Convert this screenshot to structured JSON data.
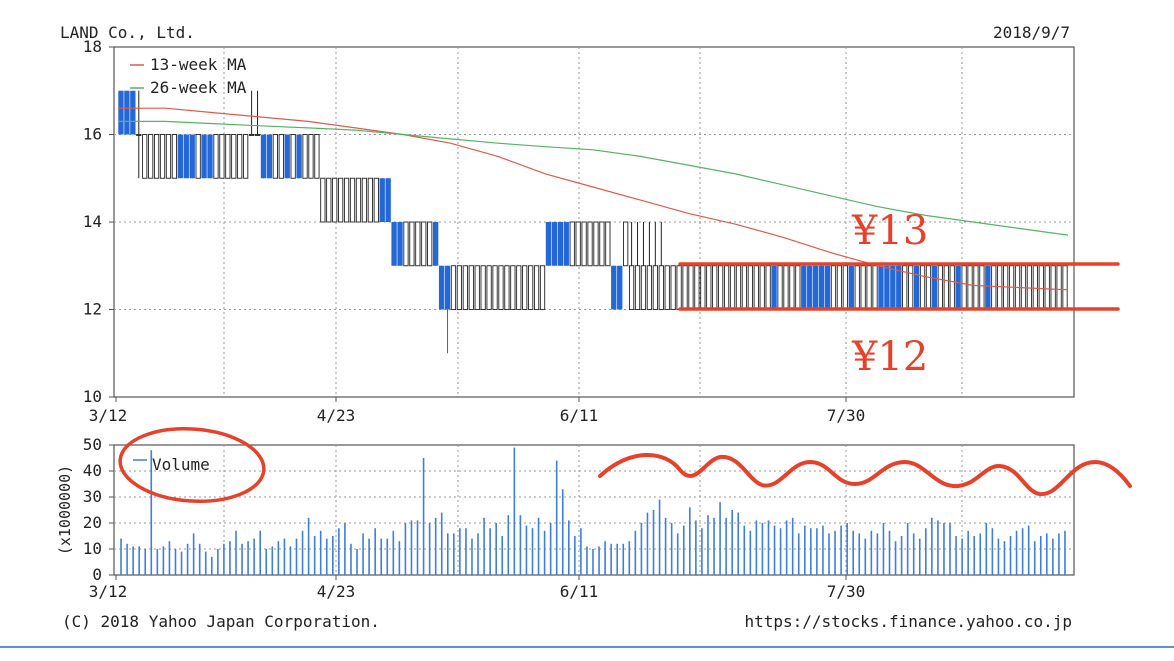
{
  "header": {
    "company": "LAND Co., Ltd.",
    "date": "2018/9/7"
  },
  "footer": {
    "copyright": "(C) 2018 Yahoo Japan Corporation.",
    "url": "https://stocks.finance.yahoo.co.jp"
  },
  "annotations": {
    "upper_label": "¥13",
    "lower_label": "¥12",
    "color": "#e8412a"
  },
  "colors": {
    "up_candle": "#2468d8",
    "down_candle": "#222222",
    "ma13": "#e05a4a",
    "ma26": "#56b464",
    "volume": "#3d7ede",
    "grid": "#999999"
  },
  "chart_data": [
    {
      "type": "candlestick",
      "ylim": [
        10,
        18
      ],
      "y_ticks": [
        "10",
        "12",
        "14",
        "16",
        "18"
      ],
      "x_tick_labels": [
        "3/12",
        "4/23",
        "6/11",
        "7/30"
      ],
      "series": [
        {
          "name": "13-week MA",
          "values": [
            16.6,
            16.6,
            16.5,
            16.4,
            16.3,
            16.15,
            16.0,
            15.8,
            15.5,
            15.1,
            14.8,
            14.5,
            14.2,
            13.95,
            13.65,
            13.3,
            13.0,
            12.75,
            12.55,
            12.5,
            12.45
          ]
        },
        {
          "name": "26-week MA",
          "values": [
            16.3,
            16.3,
            16.25,
            16.2,
            16.15,
            16.1,
            16.0,
            15.9,
            15.8,
            15.72,
            15.65,
            15.5,
            15.3,
            15.1,
            14.85,
            14.6,
            14.35,
            14.15,
            14.0,
            13.85,
            13.7
          ]
        }
      ],
      "candles": [
        {
          "o": 16,
          "h": 17,
          "l": 16,
          "c": 17
        },
        {
          "o": 16,
          "h": 17,
          "l": 16,
          "c": 17
        },
        {
          "o": 16,
          "h": 17,
          "l": 16,
          "c": 17
        },
        {
          "o": 16,
          "h": 17,
          "l": 15,
          "c": 16
        },
        {
          "o": 16,
          "h": 16,
          "l": 15,
          "c": 15
        },
        {
          "o": 16,
          "h": 16,
          "l": 15,
          "c": 15
        },
        {
          "o": 16,
          "h": 16,
          "l": 15,
          "c": 15
        },
        {
          "o": 16,
          "h": 16,
          "l": 15,
          "c": 15
        },
        {
          "o": 16,
          "h": 16,
          "l": 15,
          "c": 15
        },
        {
          "o": 16,
          "h": 16,
          "l": 15,
          "c": 15
        },
        {
          "o": 15,
          "h": 16,
          "l": 15,
          "c": 16
        },
        {
          "o": 15,
          "h": 16,
          "l": 15,
          "c": 16
        },
        {
          "o": 15,
          "h": 16,
          "l": 15,
          "c": 16
        },
        {
          "o": 16,
          "h": 16,
          "l": 15,
          "c": 15
        },
        {
          "o": 15,
          "h": 16,
          "l": 15,
          "c": 16
        },
        {
          "o": 15,
          "h": 16,
          "l": 15,
          "c": 16
        },
        {
          "o": 16,
          "h": 16,
          "l": 15,
          "c": 15
        },
        {
          "o": 16,
          "h": 16,
          "l": 15,
          "c": 15
        },
        {
          "o": 16,
          "h": 16,
          "l": 15,
          "c": 15
        },
        {
          "o": 16,
          "h": 16,
          "l": 15,
          "c": 15
        },
        {
          "o": 16,
          "h": 16,
          "l": 15,
          "c": 15
        },
        {
          "o": 16,
          "h": 16,
          "l": 15,
          "c": 15
        },
        {
          "o": 16,
          "h": 17,
          "l": 16,
          "c": 16
        },
        {
          "o": 16,
          "h": 17,
          "l": 16,
          "c": 16
        },
        {
          "o": 15,
          "h": 16,
          "l": 15,
          "c": 16
        },
        {
          "o": 15,
          "h": 16,
          "l": 15,
          "c": 16
        },
        {
          "o": 16,
          "h": 16,
          "l": 15,
          "c": 15
        },
        {
          "o": 16,
          "h": 16,
          "l": 15,
          "c": 15
        },
        {
          "o": 15,
          "h": 16,
          "l": 15,
          "c": 16
        },
        {
          "o": 16,
          "h": 16,
          "l": 15,
          "c": 15
        },
        {
          "o": 15,
          "h": 16,
          "l": 15,
          "c": 16
        },
        {
          "o": 16,
          "h": 16,
          "l": 15,
          "c": 15
        },
        {
          "o": 16,
          "h": 16,
          "l": 15,
          "c": 15
        },
        {
          "o": 16,
          "h": 16,
          "l": 15,
          "c": 15
        },
        {
          "o": 15,
          "h": 15,
          "l": 14,
          "c": 14
        },
        {
          "o": 15,
          "h": 15,
          "l": 14,
          "c": 14
        },
        {
          "o": 15,
          "h": 15,
          "l": 14,
          "c": 14
        },
        {
          "o": 15,
          "h": 15,
          "l": 14,
          "c": 14
        },
        {
          "o": 15,
          "h": 15,
          "l": 14,
          "c": 14
        },
        {
          "o": 15,
          "h": 15,
          "l": 14,
          "c": 14
        },
        {
          "o": 15,
          "h": 15,
          "l": 14,
          "c": 14
        },
        {
          "o": 15,
          "h": 15,
          "l": 14,
          "c": 14
        },
        {
          "o": 15,
          "h": 15,
          "l": 14,
          "c": 14
        },
        {
          "o": 15,
          "h": 15,
          "l": 14,
          "c": 14
        },
        {
          "o": 14,
          "h": 15,
          "l": 14,
          "c": 15
        },
        {
          "o": 14,
          "h": 15,
          "l": 14,
          "c": 15
        },
        {
          "o": 13,
          "h": 14,
          "l": 13,
          "c": 14
        },
        {
          "o": 13,
          "h": 14,
          "l": 13,
          "c": 14
        },
        {
          "o": 14,
          "h": 14,
          "l": 13,
          "c": 13
        },
        {
          "o": 14,
          "h": 14,
          "l": 13,
          "c": 13
        },
        {
          "o": 14,
          "h": 14,
          "l": 13,
          "c": 13
        },
        {
          "o": 14,
          "h": 14,
          "l": 13,
          "c": 13
        },
        {
          "o": 14,
          "h": 14,
          "l": 13,
          "c": 13
        },
        {
          "o": 13,
          "h": 14,
          "l": 13,
          "c": 14
        },
        {
          "o": 12,
          "h": 13,
          "l": 12,
          "c": 13
        },
        {
          "o": 12,
          "h": 13,
          "l": 11,
          "c": 13
        },
        {
          "o": 13,
          "h": 13,
          "l": 12,
          "c": 12
        },
        {
          "o": 13,
          "h": 13,
          "l": 12,
          "c": 12
        },
        {
          "o": 13,
          "h": 13,
          "l": 12,
          "c": 12
        },
        {
          "o": 13,
          "h": 13,
          "l": 12,
          "c": 12
        },
        {
          "o": 13,
          "h": 13,
          "l": 12,
          "c": 12
        },
        {
          "o": 13,
          "h": 13,
          "l": 12,
          "c": 12
        },
        {
          "o": 13,
          "h": 13,
          "l": 12,
          "c": 12
        },
        {
          "o": 13,
          "h": 13,
          "l": 12,
          "c": 12
        },
        {
          "o": 13,
          "h": 13,
          "l": 12,
          "c": 12
        },
        {
          "o": 13,
          "h": 13,
          "l": 12,
          "c": 12
        },
        {
          "o": 13,
          "h": 13,
          "l": 12,
          "c": 12
        },
        {
          "o": 13,
          "h": 13,
          "l": 12,
          "c": 12
        },
        {
          "o": 13,
          "h": 13,
          "l": 12,
          "c": 12
        },
        {
          "o": 13,
          "h": 13,
          "l": 12,
          "c": 12
        },
        {
          "o": 13,
          "h": 13,
          "l": 12,
          "c": 12
        },
        {
          "o": 13,
          "h": 13,
          "l": 12,
          "c": 12
        },
        {
          "o": 13,
          "h": 14,
          "l": 13,
          "c": 14
        },
        {
          "o": 13,
          "h": 14,
          "l": 13,
          "c": 14
        },
        {
          "o": 13,
          "h": 14,
          "l": 13,
          "c": 14
        },
        {
          "o": 13,
          "h": 14,
          "l": 13,
          "c": 14
        },
        {
          "o": 14,
          "h": 14,
          "l": 13,
          "c": 13
        },
        {
          "o": 14,
          "h": 14,
          "l": 13,
          "c": 13
        },
        {
          "o": 14,
          "h": 14,
          "l": 13,
          "c": 13
        },
        {
          "o": 14,
          "h": 14,
          "l": 13,
          "c": 13
        },
        {
          "o": 14,
          "h": 14,
          "l": 13,
          "c": 13
        },
        {
          "o": 14,
          "h": 14,
          "l": 13,
          "c": 13
        },
        {
          "o": 14,
          "h": 14,
          "l": 13,
          "c": 13
        },
        {
          "o": 12,
          "h": 13,
          "l": 12,
          "c": 13
        },
        {
          "o": 12,
          "h": 13,
          "l": 12,
          "c": 13
        },
        {
          "o": 14,
          "h": 14,
          "l": 13,
          "c": 13
        },
        {
          "o": 13,
          "h": 14,
          "l": 12,
          "c": 12
        },
        {
          "o": 13,
          "h": 14,
          "l": 12,
          "c": 12
        },
        {
          "o": 13,
          "h": 14,
          "l": 12,
          "c": 12
        },
        {
          "o": 13,
          "h": 14,
          "l": 12,
          "c": 12
        },
        {
          "o": 13,
          "h": 14,
          "l": 12,
          "c": 12
        },
        {
          "o": 13,
          "h": 14,
          "l": 12,
          "c": 12
        },
        {
          "o": 13,
          "h": 13,
          "l": 12,
          "c": 12
        },
        {
          "o": 13,
          "h": 13,
          "l": 12,
          "c": 12
        },
        {
          "o": 13,
          "h": 13,
          "l": 12,
          "c": 12
        },
        {
          "o": 13,
          "h": 13,
          "l": 12,
          "c": 12
        },
        {
          "o": 13,
          "h": 13,
          "l": 12,
          "c": 12
        },
        {
          "o": 13,
          "h": 13,
          "l": 12,
          "c": 12
        },
        {
          "o": 13,
          "h": 13,
          "l": 12,
          "c": 12
        },
        {
          "o": 13,
          "h": 13,
          "l": 12,
          "c": 12
        },
        {
          "o": 13,
          "h": 13,
          "l": 12,
          "c": 12
        },
        {
          "o": 13,
          "h": 13,
          "l": 12,
          "c": 12
        },
        {
          "o": 13,
          "h": 13,
          "l": 12,
          "c": 12
        },
        {
          "o": 13,
          "h": 13,
          "l": 12,
          "c": 12
        },
        {
          "o": 13,
          "h": 13,
          "l": 12,
          "c": 12
        },
        {
          "o": 13,
          "h": 13,
          "l": 12,
          "c": 12
        },
        {
          "o": 13,
          "h": 13,
          "l": 12,
          "c": 12
        },
        {
          "o": 13,
          "h": 13,
          "l": 12,
          "c": 12
        },
        {
          "o": 13,
          "h": 13,
          "l": 12,
          "c": 12
        },
        {
          "o": 13,
          "h": 13,
          "l": 12,
          "c": 12
        },
        {
          "o": 12,
          "h": 13,
          "l": 12,
          "c": 13
        },
        {
          "o": 13,
          "h": 13,
          "l": 12,
          "c": 12
        },
        {
          "o": 13,
          "h": 13,
          "l": 12,
          "c": 12
        },
        {
          "o": 13,
          "h": 13,
          "l": 12,
          "c": 12
        },
        {
          "o": 13,
          "h": 13,
          "l": 12,
          "c": 12
        },
        {
          "o": 12,
          "h": 13,
          "l": 12,
          "c": 13
        },
        {
          "o": 12,
          "h": 13,
          "l": 12,
          "c": 13
        },
        {
          "o": 12,
          "h": 13,
          "l": 12,
          "c": 13
        },
        {
          "o": 12,
          "h": 13,
          "l": 12,
          "c": 13
        },
        {
          "o": 12,
          "h": 13,
          "l": 12,
          "c": 13
        },
        {
          "o": 13,
          "h": 13,
          "l": 12,
          "c": 12
        },
        {
          "o": 13,
          "h": 13,
          "l": 12,
          "c": 12
        },
        {
          "o": 13,
          "h": 13,
          "l": 12,
          "c": 12
        },
        {
          "o": 12,
          "h": 13,
          "l": 12,
          "c": 13
        },
        {
          "o": 13,
          "h": 13,
          "l": 12,
          "c": 12
        },
        {
          "o": 13,
          "h": 13,
          "l": 12,
          "c": 12
        },
        {
          "o": 13,
          "h": 13,
          "l": 12,
          "c": 12
        },
        {
          "o": 13,
          "h": 13,
          "l": 12,
          "c": 12
        },
        {
          "o": 12,
          "h": 13,
          "l": 12,
          "c": 13
        },
        {
          "o": 12,
          "h": 13,
          "l": 12,
          "c": 13
        },
        {
          "o": 12,
          "h": 13,
          "l": 12,
          "c": 13
        },
        {
          "o": 12,
          "h": 13,
          "l": 12,
          "c": 13
        },
        {
          "o": 13,
          "h": 13,
          "l": 12,
          "c": 12
        },
        {
          "o": 13,
          "h": 13,
          "l": 12,
          "c": 12
        },
        {
          "o": 12,
          "h": 13,
          "l": 12,
          "c": 13
        },
        {
          "o": 13,
          "h": 13,
          "l": 12,
          "c": 12
        },
        {
          "o": 13,
          "h": 13,
          "l": 12,
          "c": 12
        },
        {
          "o": 12,
          "h": 13,
          "l": 12,
          "c": 13
        },
        {
          "o": 13,
          "h": 13,
          "l": 12,
          "c": 12
        },
        {
          "o": 13,
          "h": 13,
          "l": 12,
          "c": 12
        },
        {
          "o": 13,
          "h": 13,
          "l": 12,
          "c": 12
        },
        {
          "o": 12,
          "h": 13,
          "l": 12,
          "c": 13
        },
        {
          "o": 13,
          "h": 13,
          "l": 12,
          "c": 12
        },
        {
          "o": 13,
          "h": 13,
          "l": 12,
          "c": 12
        },
        {
          "o": 13,
          "h": 13,
          "l": 12,
          "c": 12
        },
        {
          "o": 13,
          "h": 13,
          "l": 12,
          "c": 12
        },
        {
          "o": 12,
          "h": 13,
          "l": 12,
          "c": 13
        },
        {
          "o": 13,
          "h": 13,
          "l": 12,
          "c": 12
        },
        {
          "o": 13,
          "h": 13,
          "l": 12,
          "c": 12
        },
        {
          "o": 13,
          "h": 13,
          "l": 12,
          "c": 12
        },
        {
          "o": 13,
          "h": 13,
          "l": 12,
          "c": 12
        },
        {
          "o": 13,
          "h": 13,
          "l": 12,
          "c": 12
        },
        {
          "o": 13,
          "h": 13,
          "l": 12,
          "c": 12
        },
        {
          "o": 13,
          "h": 13,
          "l": 12,
          "c": 12
        },
        {
          "o": 13,
          "h": 13,
          "l": 12,
          "c": 12
        },
        {
          "o": 13,
          "h": 13,
          "l": 12,
          "c": 12
        },
        {
          "o": 13,
          "h": 13,
          "l": 12,
          "c": 12
        },
        {
          "o": 13,
          "h": 13,
          "l": 12,
          "c": 12
        },
        {
          "o": 13,
          "h": 13,
          "l": 12,
          "c": 12
        },
        {
          "o": 13,
          "h": 13,
          "l": 12,
          "c": 12
        }
      ]
    },
    {
      "type": "bar",
      "ylim": [
        0,
        50
      ],
      "y_ticks": [
        "0",
        "10",
        "20",
        "30",
        "40",
        "50"
      ],
      "ylabel": "(x1000000)",
      "x_tick_labels": [
        "3/12",
        "4/23",
        "6/11",
        "7/30"
      ],
      "series": [
        {
          "name": "Volume"
        }
      ],
      "values": [
        14,
        12,
        11,
        11,
        10,
        48,
        10,
        11,
        13,
        10,
        9,
        12,
        16,
        12,
        9,
        7,
        10,
        12,
        13,
        17,
        12,
        13,
        14,
        17,
        10,
        11,
        13,
        14,
        11,
        14,
        17,
        22,
        15,
        17,
        14,
        15,
        18,
        20,
        12,
        10,
        16,
        14,
        18,
        14,
        14,
        17,
        13,
        20,
        21,
        21,
        45,
        20,
        22,
        24,
        16,
        16,
        18,
        18,
        14,
        16,
        22,
        18,
        20,
        15,
        23,
        49,
        23,
        19,
        18,
        22,
        17,
        20,
        44,
        33,
        21,
        15,
        18,
        11,
        10,
        11,
        13,
        12,
        12,
        12,
        13,
        17,
        20,
        24,
        25,
        29,
        22,
        20,
        16,
        19,
        26,
        21,
        18,
        23,
        22,
        28,
        22,
        25,
        24,
        19,
        17,
        21,
        20,
        21,
        19,
        18,
        21,
        22,
        16,
        19,
        18,
        18,
        19,
        16,
        17,
        19,
        20,
        17,
        16,
        14,
        17,
        16,
        20,
        17,
        13,
        15,
        20,
        16,
        14,
        18,
        22,
        21,
        20,
        20,
        15,
        14,
        17,
        15,
        16,
        20,
        18,
        14,
        13,
        15,
        17,
        18,
        19,
        13,
        15,
        16,
        14,
        16,
        17
      ]
    }
  ]
}
